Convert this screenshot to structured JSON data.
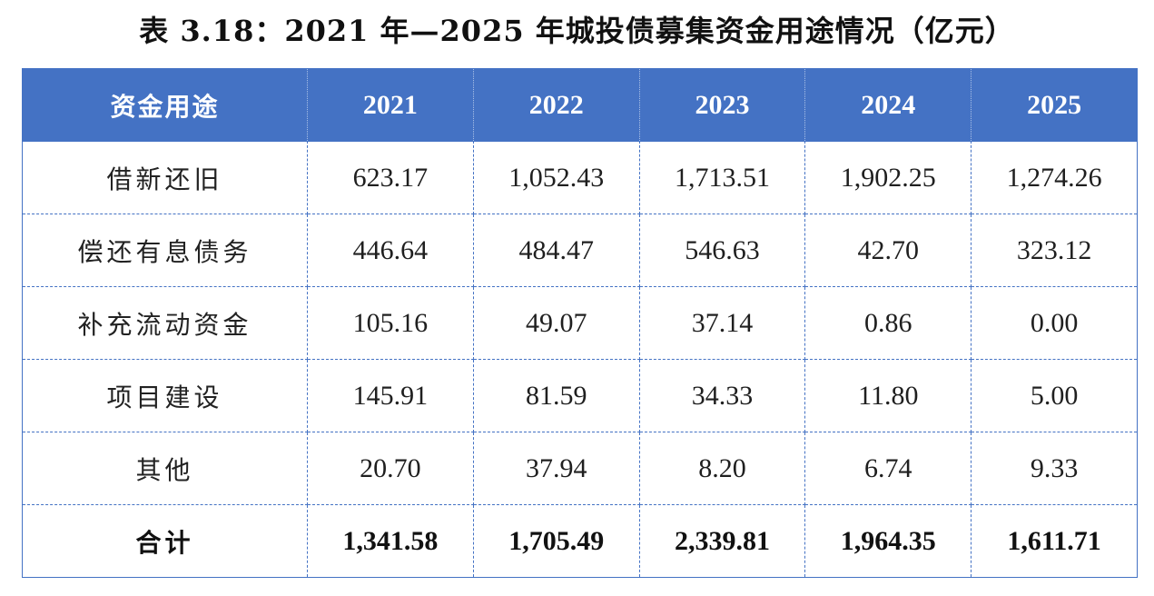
{
  "title": "表 3.18：2021 年—2025 年城投债募集资金用途情况（亿元）",
  "table": {
    "headers": [
      "资金用途",
      "2021",
      "2022",
      "2023",
      "2024",
      "2025"
    ],
    "rows": [
      {
        "label": "借新还旧",
        "values": [
          "623.17",
          "1,052.43",
          "1,713.51",
          "1,902.25",
          "1,274.26"
        ]
      },
      {
        "label": "偿还有息债务",
        "values": [
          "446.64",
          "484.47",
          "546.63",
          "42.70",
          "323.12"
        ]
      },
      {
        "label": "补充流动资金",
        "values": [
          "105.16",
          "49.07",
          "37.14",
          "0.86",
          "0.00"
        ]
      },
      {
        "label": "项目建设",
        "values": [
          "145.91",
          "81.59",
          "34.33",
          "11.80",
          "5.00"
        ]
      },
      {
        "label": "其他",
        "values": [
          "20.70",
          "37.94",
          "8.20",
          "6.74",
          "9.33"
        ]
      }
    ],
    "total": {
      "label": "合计",
      "values": [
        "1,341.58",
        "1,705.49",
        "2,339.81",
        "1,964.35",
        "1,611.71"
      ]
    }
  },
  "colors": {
    "header_bg": "#4472c4",
    "header_text": "#ffffff",
    "border": "#4472c4"
  },
  "chart_data": {
    "type": "table",
    "title": "表 3.18：2021 年—2025 年城投债募集资金用途情况（亿元）",
    "columns": [
      "资金用途",
      "2021",
      "2022",
      "2023",
      "2024",
      "2025"
    ],
    "categories": [
      "2021",
      "2022",
      "2023",
      "2024",
      "2025"
    ],
    "series": [
      {
        "name": "借新还旧",
        "values": [
          623.17,
          1052.43,
          1713.51,
          1902.25,
          1274.26
        ]
      },
      {
        "name": "偿还有息债务",
        "values": [
          446.64,
          484.47,
          546.63,
          42.7,
          323.12
        ]
      },
      {
        "name": "补充流动资金",
        "values": [
          105.16,
          49.07,
          37.14,
          0.86,
          0.0
        ]
      },
      {
        "name": "项目建设",
        "values": [
          145.91,
          81.59,
          34.33,
          11.8,
          5.0
        ]
      },
      {
        "name": "其他",
        "values": [
          20.7,
          37.94,
          8.2,
          6.74,
          9.33
        ]
      },
      {
        "name": "合计",
        "values": [
          1341.58,
          1705.49,
          2339.81,
          1964.35,
          1611.71
        ]
      }
    ]
  }
}
